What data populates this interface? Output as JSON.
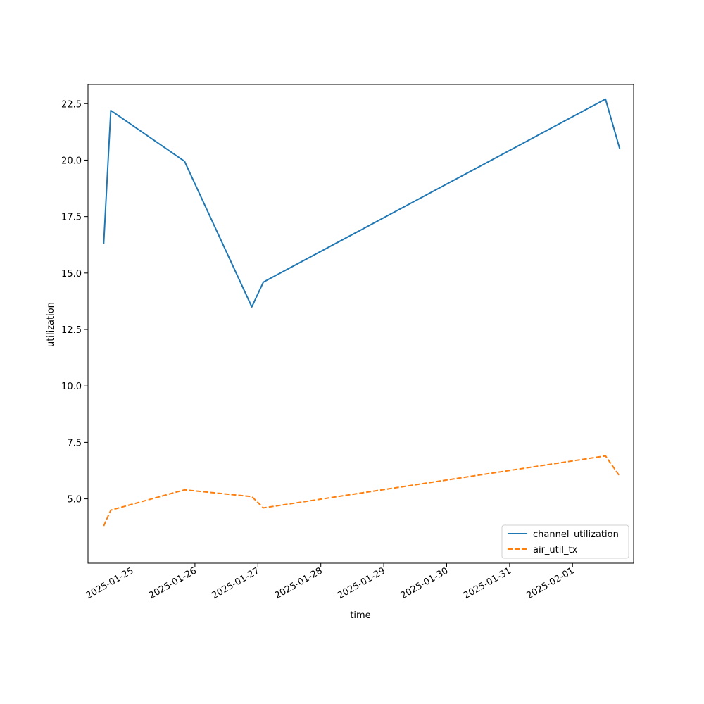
{
  "chart_data": {
    "type": "line",
    "title": "",
    "xlabel": "time",
    "ylabel": "utilization",
    "x_ticks": [
      "2025-01-25",
      "2025-01-26",
      "2025-01-27",
      "2025-01-28",
      "2025-01-29",
      "2025-01-30",
      "2025-01-31",
      "2025-02-01"
    ],
    "y_ticks": [
      "5.0",
      "7.5",
      "10.0",
      "12.5",
      "15.0",
      "17.5",
      "20.0",
      "22.5"
    ],
    "xlim": [
      "2025-01-24 07:13",
      "2025-02-01 23:17"
    ],
    "ylim": [
      2.15,
      23.35
    ],
    "grid": false,
    "legend_position": "lower right",
    "series": [
      {
        "name": "channel_utilization",
        "color": "#1f77b4",
        "style": "solid",
        "x": [
          "2025-01-24 13:12",
          "2025-01-24 15:55",
          "2025-01-25 20:02",
          "2025-01-26 21:41",
          "2025-01-27 02:05",
          "2025-02-01 12:35",
          "2025-02-01 18:00"
        ],
        "y": [
          16.3,
          22.2,
          19.95,
          13.5,
          14.6,
          22.7,
          20.5
        ]
      },
      {
        "name": "air_util_tx",
        "color": "#ff7f0e",
        "style": "dashed",
        "x": [
          "2025-01-24 13:12",
          "2025-01-24 15:55",
          "2025-01-25 20:02",
          "2025-01-26 21:41",
          "2025-01-27 02:05",
          "2025-02-01 12:35",
          "2025-02-01 18:00"
        ],
        "y": [
          3.8,
          4.5,
          5.4,
          5.1,
          4.6,
          6.9,
          6.0
        ]
      }
    ]
  }
}
